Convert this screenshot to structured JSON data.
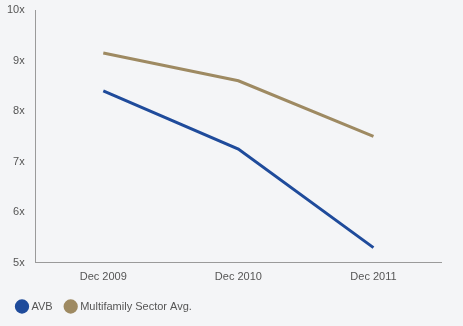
{
  "chart_data": {
    "type": "line",
    "categories": [
      "Dec 2009",
      "Dec 2010",
      "Dec 2011"
    ],
    "series": [
      {
        "name": "AVB",
        "color": "#1f4b9b",
        "values": [
          8.4,
          7.25,
          5.3
        ]
      },
      {
        "name": "Multifamily Sector Avg.",
        "color": "#9e8a62",
        "values": [
          9.15,
          8.6,
          7.5
        ]
      }
    ],
    "ylim": [
      5,
      10
    ],
    "yticks": [
      {
        "value": 5,
        "label": "5x"
      },
      {
        "value": 6,
        "label": "6x"
      },
      {
        "value": 7,
        "label": "7x"
      },
      {
        "value": 8,
        "label": "8x"
      },
      {
        "value": 9,
        "label": "9x"
      },
      {
        "value": 10,
        "label": "10x"
      }
    ],
    "grid": false,
    "legend": "bottom-left",
    "marker": "none"
  }
}
